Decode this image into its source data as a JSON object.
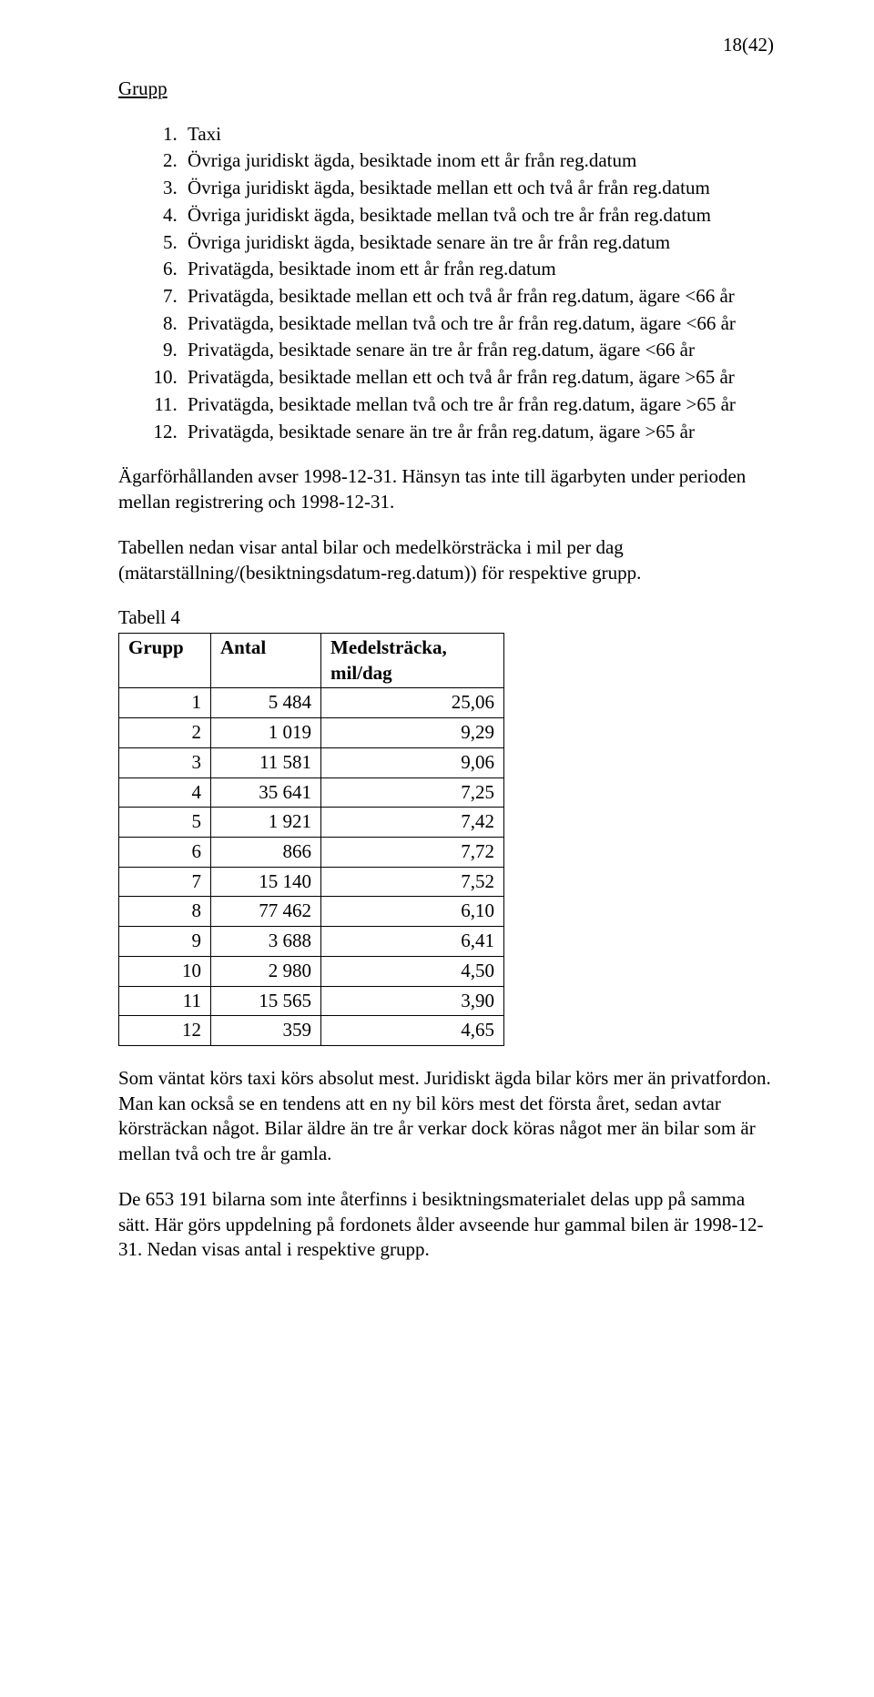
{
  "page_number": "18(42)",
  "section_title": "Grupp",
  "group_list": [
    "Taxi",
    "Övriga juridiskt ägda, besiktade inom ett år från reg.datum",
    "Övriga juridiskt ägda, besiktade mellan ett och två år från reg.datum",
    "Övriga juridiskt ägda, besiktade mellan två och tre år från reg.datum",
    "Övriga juridiskt ägda, besiktade senare än tre år från reg.datum",
    "Privatägda, besiktade inom ett år från reg.datum",
    "Privatägda, besiktade mellan ett och två år från reg.datum, ägare <66 år",
    "Privatägda, besiktade mellan två och tre år från reg.datum, ägare <66 år",
    "Privatägda, besiktade senare än tre år från reg.datum, ägare <66 år",
    "Privatägda, besiktade mellan ett och två år från reg.datum, ägare >65 år",
    "Privatägda, besiktade mellan två och tre år från reg.datum, ägare >65 år",
    "Privatägda, besiktade senare än tre år från reg.datum, ägare >65 år"
  ],
  "para_agar": "Ägarförhållanden avser 1998-12-31. Hänsyn tas inte till ägarbyten under perioden mellan registrering och 1998-12-31.",
  "para_tabell_intro": "Tabellen nedan visar antal bilar och medelkörsträcka i mil per dag (mätarställning/(besiktningsdatum-reg.datum)) för respektive grupp.",
  "table": {
    "caption": "Tabell 4",
    "headers": {
      "grupp": "Grupp",
      "antal": "Antal",
      "medel": "Medelsträcka, mil/dag"
    },
    "rows": [
      {
        "grupp": "1",
        "antal": "5 484",
        "medel": "25,06"
      },
      {
        "grupp": "2",
        "antal": "1 019",
        "medel": "9,29"
      },
      {
        "grupp": "3",
        "antal": "11 581",
        "medel": "9,06"
      },
      {
        "grupp": "4",
        "antal": "35 641",
        "medel": "7,25"
      },
      {
        "grupp": "5",
        "antal": "1 921",
        "medel": "7,42"
      },
      {
        "grupp": "6",
        "antal": "866",
        "medel": "7,72"
      },
      {
        "grupp": "7",
        "antal": "15 140",
        "medel": "7,52"
      },
      {
        "grupp": "8",
        "antal": "77 462",
        "medel": "6,10"
      },
      {
        "grupp": "9",
        "antal": "3 688",
        "medel": "6,41"
      },
      {
        "grupp": "10",
        "antal": "2 980",
        "medel": "4,50"
      },
      {
        "grupp": "11",
        "antal": "15 565",
        "medel": "3,90"
      },
      {
        "grupp": "12",
        "antal": "359",
        "medel": "4,65"
      }
    ]
  },
  "para_som_vantat": "Som väntat körs taxi körs absolut mest. Juridiskt ägda bilar körs mer än privatfordon. Man kan också se en tendens att en ny bil körs mest det första året, sedan avtar körsträckan något. Bilar äldre än tre år verkar dock köras något mer än bilar som är mellan två och tre år gamla.",
  "para_de653": "De 653 191 bilarna som inte återfinns i besiktningsmaterialet delas upp på samma sätt. Här görs uppdelning på fordonets ålder avseende hur gammal bilen är 1998-12-31. Nedan visas antal i respektive grupp."
}
